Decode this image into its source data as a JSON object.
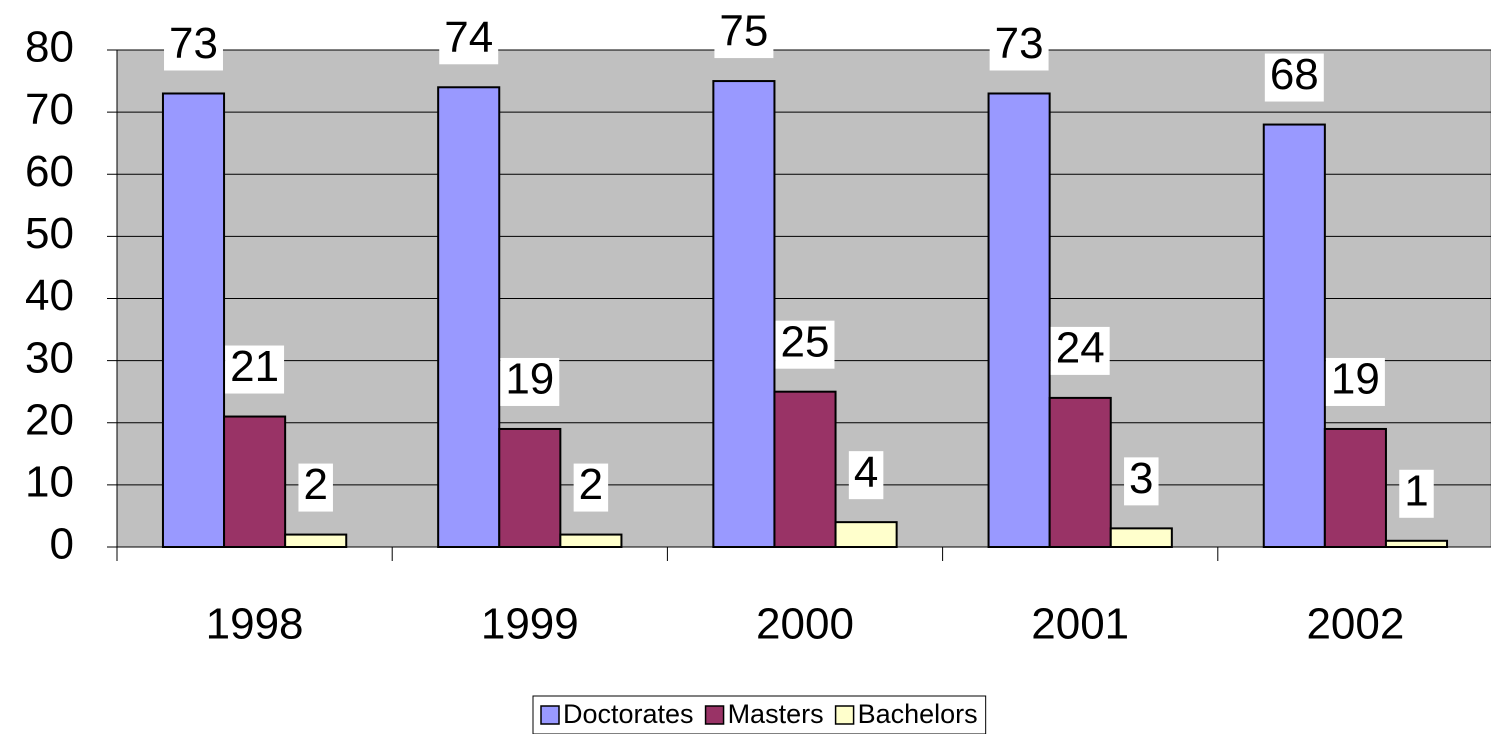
{
  "chart_data": {
    "type": "bar",
    "categories": [
      "1998",
      "1999",
      "2000",
      "2001",
      "2002"
    ],
    "series": [
      {
        "name": "Doctorates",
        "color": "#9999ff",
        "values": [
          73,
          74,
          75,
          73,
          68
        ]
      },
      {
        "name": "Masters",
        "color": "#993366",
        "values": [
          21,
          19,
          25,
          24,
          19
        ]
      },
      {
        "name": "Bachelors",
        "color": "#ffffcc",
        "values": [
          2,
          2,
          4,
          3,
          1
        ]
      }
    ],
    "ylim": [
      0,
      80
    ],
    "yticks": [
      0,
      10,
      20,
      30,
      40,
      50,
      60,
      70,
      80
    ],
    "grid": true,
    "legend": "bottom"
  }
}
